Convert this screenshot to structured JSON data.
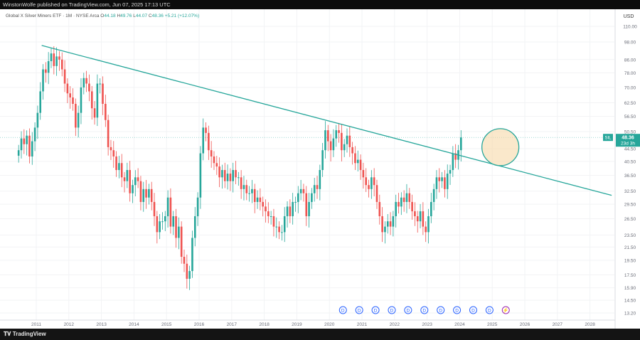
{
  "header": {
    "published_text": "WinstonWolfe published on TradingView.com, Jun 07, 2025 17:13 UTC"
  },
  "footer": {
    "brand": "TradingView"
  },
  "legend": {
    "symbol_desc": "Global X Silver Miners ETF · 1M · NYSE Arca",
    "o_label": "O",
    "o_value": "44.18",
    "h_label": "H",
    "h_value": "49.76",
    "l_label": "L",
    "l_value": "44.07",
    "c_label": "C",
    "c_value": "48.36",
    "change": "+5.21 (+12.07%)"
  },
  "currency": "USD",
  "price_tag": {
    "symbol": "SIL",
    "price": "48.36",
    "countdown": "23d 3h"
  },
  "event_markers": {
    "dividend_glyph": "D",
    "dividend_count": 10,
    "flash_glyph": "⚡"
  },
  "colors": {
    "up": "#26a69a",
    "down": "#ef5350",
    "trendline": "#26a69a",
    "highlight_fill": "#f7d9a8",
    "highlight_stroke": "#26a69a",
    "marker": "#2962ff",
    "flash": "#9c27b0"
  },
  "chart_data": {
    "type": "candlestick",
    "title": "",
    "symbol": "SIL",
    "interval": "1M",
    "y_scale": "log",
    "y_ticks": [
      "110.00",
      "98.00",
      "86.00",
      "78.00",
      "70.00",
      "62.50",
      "56.50",
      "50.50",
      "44.50",
      "40.50",
      "36.50",
      "32.50",
      "29.50",
      "26.50",
      "23.50",
      "21.50",
      "19.50",
      "17.50",
      "15.90",
      "14.50",
      "13.20"
    ],
    "x_ticks": [
      "2011",
      "2012",
      "2013",
      "2014",
      "2015",
      "2016",
      "2017",
      "2018",
      "2019",
      "2020",
      "2021",
      "2022",
      "2023",
      "2024",
      "2025",
      "2026",
      "2027",
      "2028"
    ],
    "last_close": 48.36,
    "trendline": {
      "start": {
        "date": "2011-03",
        "price": 95.5
      },
      "end": {
        "date": "2028-09",
        "price": 31.5
      }
    },
    "highlight_circle": {
      "center": {
        "date": "2025-04",
        "price": 45.0
      }
    },
    "dividend_dates": [
      "2020-06",
      "2020-12",
      "2021-06",
      "2021-12",
      "2022-06",
      "2022-12",
      "2023-06",
      "2023-12",
      "2024-06",
      "2024-12"
    ],
    "flash_date": "2025-06",
    "series": [
      {
        "start": "2010-06",
        "closes": [
          44,
          48,
          46,
          49,
          42,
          47,
          52,
          58,
          68,
          80,
          78,
          85,
          90,
          82,
          88,
          86,
          80,
          72,
          67,
          65,
          62,
          52,
          58,
          70,
          75,
          72,
          68,
          60,
          56,
          72,
          72,
          62,
          55,
          45,
          44,
          42,
          38,
          40,
          36,
          35,
          38,
          32,
          34,
          36,
          35,
          30,
          33,
          31,
          33,
          30,
          27,
          24,
          26,
          26,
          27,
          31,
          25,
          27,
          23,
          25,
          20,
          19,
          17,
          18,
          23,
          27,
          31,
          43,
          52,
          50,
          44,
          42,
          40,
          39,
          36,
          38,
          35,
          37,
          35,
          38,
          36,
          36,
          33,
          34,
          32,
          32,
          33,
          30,
          31,
          30,
          29,
          28,
          27,
          27,
          25,
          25,
          24,
          24,
          27,
          29,
          27,
          30,
          30,
          32,
          33,
          32,
          27,
          30,
          32,
          34,
          33,
          38,
          44,
          51,
          47,
          44,
          48,
          51,
          50,
          44,
          46,
          49,
          45,
          43,
          40,
          41,
          38,
          36,
          34,
          33,
          36,
          34,
          30,
          27,
          24,
          25,
          26,
          25,
          27,
          30,
          29,
          31,
          30,
          32,
          30,
          28,
          27,
          26,
          28,
          25,
          24,
          27,
          30,
          33,
          36,
          35,
          36,
          33,
          37,
          38,
          43,
          41,
          44,
          48.36
        ]
      }
    ]
  }
}
